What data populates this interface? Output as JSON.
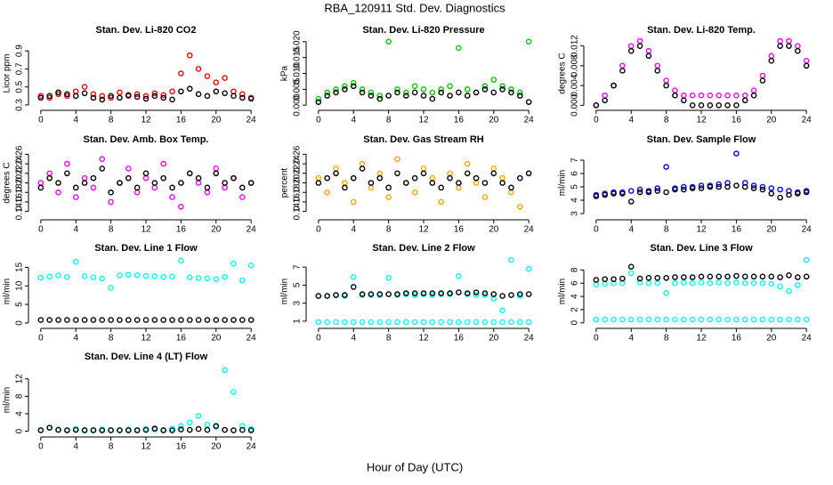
{
  "title": "RBA_120911  Std. Dev. Diagnostics",
  "xlabel": "Hour of Day (UTC)",
  "chart_data": [
    {
      "type": "scatter",
      "title": "Stan. Dev. Li-820 CO2",
      "ylabel": "Licor ppm",
      "x": [
        0,
        1,
        2,
        3,
        4,
        5,
        6,
        7,
        8,
        9,
        10,
        11,
        12,
        13,
        14,
        15,
        16,
        17,
        18,
        19,
        20,
        21,
        22,
        23,
        24
      ],
      "xlim": [
        -1,
        25
      ],
      "xticks": [
        0,
        4,
        8,
        12,
        16,
        20,
        24
      ],
      "ylim": [
        0.28,
        1.02
      ],
      "yticks": [
        0.3,
        0.5,
        0.7,
        0.9
      ],
      "series": [
        {
          "color": "#ff0000",
          "values": [
            0.4,
            0.38,
            0.42,
            0.4,
            0.45,
            0.5,
            0.42,
            0.4,
            0.38,
            0.44,
            0.4,
            0.42,
            0.4,
            0.43,
            0.41,
            0.45,
            0.65,
            0.85,
            0.7,
            0.62,
            0.55,
            0.6,
            0.45,
            0.42,
            0.38
          ]
        },
        {
          "color": "#000000",
          "values": [
            0.38,
            0.4,
            0.44,
            0.42,
            0.4,
            0.43,
            0.38,
            0.36,
            0.4,
            0.38,
            0.41,
            0.39,
            0.37,
            0.4,
            0.38,
            0.36,
            0.45,
            0.48,
            0.42,
            0.4,
            0.45,
            0.43,
            0.4,
            0.38,
            0.37
          ]
        }
      ]
    },
    {
      "type": "scatter",
      "title": "Stan. Dev. Li-820 Pressure",
      "ylabel": "kPa",
      "x": [
        0,
        1,
        2,
        3,
        4,
        5,
        6,
        7,
        8,
        9,
        10,
        11,
        12,
        13,
        14,
        15,
        16,
        17,
        18,
        19,
        20,
        21,
        22,
        23,
        24
      ],
      "xlim": [
        -1,
        25
      ],
      "xticks": [
        0,
        4,
        8,
        12,
        16,
        20,
        24
      ],
      "ylim": [
        -0.0005,
        0.0205
      ],
      "yticks": [
        {
          "value": 0,
          "label": "0.000"
        },
        {
          "value": 0.005,
          "label": "0.005"
        },
        {
          "value": 0.01,
          "label": "0.010"
        },
        {
          "value": 0.015,
          "label": "0.015"
        },
        {
          "value": 0.02,
          "label": "0.020"
        }
      ],
      "series": [
        {
          "color": "#00cc00",
          "values": [
            0.002,
            0.004,
            0.005,
            0.006,
            0.007,
            0.005,
            0.004,
            0.003,
            0.02,
            0.005,
            0.004,
            0.006,
            0.005,
            0.004,
            0.005,
            0.006,
            0.018,
            0.005,
            0.004,
            0.006,
            0.008,
            0.006,
            0.005,
            0.004,
            0.02
          ]
        },
        {
          "color": "#000000",
          "values": [
            0.001,
            0.003,
            0.004,
            0.005,
            0.006,
            0.004,
            0.003,
            0.002,
            0.003,
            0.004,
            0.003,
            0.004,
            0.003,
            0.002,
            0.004,
            0.003,
            0.004,
            0.003,
            0.004,
            0.005,
            0.004,
            0.005,
            0.004,
            0.003,
            0.001
          ]
        }
      ]
    },
    {
      "type": "scatter",
      "title": "Stan. Dev. Li-820 Temp.",
      "ylabel": "degrees C",
      "x": [
        0,
        1,
        2,
        3,
        4,
        5,
        6,
        7,
        8,
        9,
        10,
        11,
        12,
        13,
        14,
        15,
        16,
        17,
        18,
        19,
        20,
        21,
        22,
        23,
        24
      ],
      "xlim": [
        -1,
        25
      ],
      "xticks": [
        0,
        4,
        8,
        12,
        16,
        20,
        24
      ],
      "ylim": [
        -0.0003,
        0.0132
      ],
      "yticks": [
        {
          "value": 0,
          "label": "0.000"
        },
        {
          "value": 0.004,
          "label": "0.004"
        },
        {
          "value": 0.008,
          "label": "0.008"
        },
        {
          "value": 0.012,
          "label": "0.012"
        }
      ],
      "series": [
        {
          "color": "#ff00ff",
          "values": [
            0,
            0.002,
            0.004,
            0.008,
            0.012,
            0.013,
            0.011,
            0.008,
            0.005,
            0.003,
            0.002,
            0.002,
            0.002,
            0.002,
            0.002,
            0.002,
            0.002,
            0.002,
            0.003,
            0.006,
            0.01,
            0.013,
            0.013,
            0.012,
            0.009
          ]
        },
        {
          "color": "#000000",
          "values": [
            0,
            0.001,
            0.004,
            0.007,
            0.011,
            0.012,
            0.01,
            0.007,
            0.004,
            0.002,
            0.001,
            0,
            0,
            0,
            0,
            0,
            0,
            0.001,
            0.002,
            0.005,
            0.009,
            0.012,
            0.012,
            0.011,
            0.008
          ]
        }
      ]
    },
    {
      "type": "scatter",
      "title": "Stan. Dev. Amb. Box Temp.",
      "ylabel": "degrees C",
      "x": [
        0,
        1,
        2,
        3,
        4,
        5,
        6,
        7,
        8,
        9,
        10,
        11,
        12,
        13,
        14,
        15,
        16,
        17,
        18,
        19,
        20,
        21,
        22,
        23,
        24
      ],
      "xlim": [
        -1,
        25
      ],
      "xticks": [
        0,
        4,
        8,
        12,
        16,
        20,
        24
      ],
      "ylim": [
        0.13,
        0.27
      ],
      "yticks": [
        0.14,
        0.16,
        0.18,
        {
          "value": 0.2,
          "label": "0.20"
        },
        0.22,
        0.24,
        0.26
      ],
      "series": [
        {
          "color": "#ff00ff",
          "values": [
            0.2,
            0.22,
            0.18,
            0.24,
            0.17,
            0.21,
            0.19,
            0.25,
            0.16,
            0.2,
            0.23,
            0.18,
            0.21,
            0.19,
            0.24,
            0.17,
            0.15,
            0.22,
            0.2,
            0.18,
            0.23,
            0.19,
            0.21,
            0.17,
            0.2
          ]
        },
        {
          "color": "#000000",
          "values": [
            0.19,
            0.21,
            0.2,
            0.22,
            0.19,
            0.2,
            0.21,
            0.23,
            0.18,
            0.2,
            0.21,
            0.19,
            0.22,
            0.2,
            0.21,
            0.19,
            0.2,
            0.22,
            0.21,
            0.19,
            0.22,
            0.2,
            0.21,
            0.19,
            0.2
          ]
        }
      ]
    },
    {
      "type": "scatter",
      "title": "Stan. Dev. Gas Stream RH",
      "ylabel": "percent",
      "x": [
        0,
        1,
        2,
        3,
        4,
        5,
        6,
        7,
        8,
        9,
        10,
        11,
        12,
        13,
        14,
        15,
        16,
        17,
        18,
        19,
        20,
        21,
        22,
        23,
        24
      ],
      "xlim": [
        -1,
        25
      ],
      "xticks": [
        0,
        4,
        8,
        12,
        16,
        20,
        24
      ],
      "ylim": [
        0.13,
        0.27
      ],
      "yticks": [
        0.14,
        0.16,
        0.18,
        {
          "value": 0.2,
          "label": "0.20"
        },
        0.22,
        0.24,
        0.26
      ],
      "series": [
        {
          "color": "#ffa500",
          "values": [
            0.21,
            0.18,
            0.23,
            0.2,
            0.16,
            0.24,
            0.19,
            0.22,
            0.17,
            0.25,
            0.2,
            0.18,
            0.23,
            0.21,
            0.16,
            0.22,
            0.19,
            0.24,
            0.2,
            0.17,
            0.23,
            0.21,
            0.18,
            0.15,
            0.22
          ]
        },
        {
          "color": "#000000",
          "values": [
            0.2,
            0.21,
            0.22,
            0.19,
            0.21,
            0.23,
            0.2,
            0.21,
            0.19,
            0.22,
            0.2,
            0.21,
            0.22,
            0.2,
            0.19,
            0.21,
            0.2,
            0.22,
            0.21,
            0.2,
            0.22,
            0.2,
            0.19,
            0.21,
            0.22
          ]
        }
      ]
    },
    {
      "type": "scatter",
      "title": "Stan. Dev. Sample Flow",
      "ylabel": "ml/min",
      "x": [
        0,
        1,
        2,
        3,
        4,
        5,
        6,
        7,
        8,
        9,
        10,
        11,
        12,
        13,
        14,
        15,
        16,
        17,
        18,
        19,
        20,
        21,
        22,
        23,
        24
      ],
      "xlim": [
        -1,
        25
      ],
      "xticks": [
        0,
        4,
        8,
        12,
        16,
        20,
        24
      ],
      "ylim": [
        2.8,
        7.8
      ],
      "yticks": [
        3,
        4,
        5,
        6,
        7
      ],
      "series": [
        {
          "color": "#0000ff",
          "values": [
            4.4,
            4.5,
            4.6,
            4.6,
            4.7,
            4.8,
            4.7,
            4.9,
            6.5,
            4.9,
            5.0,
            5.0,
            5.1,
            5.1,
            5.2,
            5.3,
            7.5,
            5.3,
            5.1,
            5.0,
            4.9,
            4.8,
            4.7,
            4.6,
            4.7
          ]
        },
        {
          "color": "#000000",
          "values": [
            4.3,
            4.4,
            4.5,
            4.5,
            3.9,
            4.6,
            4.6,
            4.7,
            4.6,
            4.8,
            4.8,
            4.9,
            4.9,
            5.0,
            5.0,
            5.0,
            5.1,
            5.0,
            4.9,
            4.8,
            4.5,
            4.2,
            4.4,
            4.5,
            4.6
          ]
        }
      ]
    },
    {
      "type": "scatter",
      "title": "Stan. Dev. Line 1 Flow",
      "ylabel": "ml/min",
      "x": [
        0,
        1,
        2,
        3,
        4,
        5,
        6,
        7,
        8,
        9,
        10,
        11,
        12,
        13,
        14,
        15,
        16,
        17,
        18,
        19,
        20,
        21,
        22,
        23,
        24
      ],
      "xlim": [
        -1,
        25
      ],
      "xticks": [
        0,
        4,
        8,
        12,
        16,
        20,
        24
      ],
      "ylim": [
        -0.5,
        17.5
      ],
      "yticks": [
        0,
        5,
        10,
        15
      ],
      "series": [
        {
          "color": "#00ffff",
          "values": [
            12.2,
            12.5,
            12.8,
            12.4,
            16.5,
            12.6,
            12.3,
            12.0,
            9.5,
            12.8,
            13.0,
            12.9,
            12.7,
            12.6,
            12.4,
            12.5,
            16.8,
            12.3,
            12.1,
            12.0,
            11.8,
            12.4,
            16.0,
            11.5,
            15.5
          ]
        },
        {
          "color": "#000000",
          "values": [
            0.8,
            0.8,
            0.8,
            0.8,
            0.8,
            0.8,
            0.8,
            0.8,
            0.8,
            0.8,
            0.8,
            0.8,
            0.8,
            0.8,
            0.8,
            0.8,
            0.8,
            0.8,
            0.8,
            0.8,
            0.8,
            0.8,
            0.8,
            0.8,
            0.8
          ]
        }
      ]
    },
    {
      "type": "scatter",
      "title": "Stan. Dev. Line 2 Flow",
      "ylabel": "ml/min",
      "x": [
        0,
        1,
        2,
        3,
        4,
        5,
        6,
        7,
        8,
        9,
        10,
        11,
        12,
        13,
        14,
        15,
        16,
        17,
        18,
        19,
        20,
        21,
        22,
        23,
        24
      ],
      "xlim": [
        -1,
        25
      ],
      "xticks": [
        0,
        4,
        8,
        12,
        16,
        20,
        24
      ],
      "ylim": [
        0.6,
        8
      ],
      "yticks": [
        1,
        3,
        5,
        7
      ],
      "series": [
        {
          "color": "#00ffff",
          "values": [
            3.8,
            3.8,
            3.9,
            3.8,
            5.9,
            3.9,
            3.9,
            3.9,
            5.8,
            3.9,
            4.0,
            3.9,
            4.0,
            3.9,
            4.0,
            4.0,
            6.0,
            4.0,
            3.9,
            3.9,
            3.5,
            2.2,
            7.8,
            3.8,
            6.8
          ]
        },
        {
          "color": "#00ffff",
          "values": [
            0.9,
            0.9,
            0.9,
            0.9,
            0.9,
            0.9,
            0.9,
            0.9,
            0.9,
            0.9,
            0.9,
            0.9,
            0.9,
            0.9,
            0.9,
            0.9,
            0.9,
            0.9,
            0.9,
            0.9,
            0.9,
            0.9,
            0.9,
            0.9,
            0.9
          ]
        },
        {
          "color": "#000000",
          "values": [
            3.8,
            3.8,
            3.9,
            3.9,
            4.8,
            4.0,
            4.0,
            4.0,
            4.0,
            4.0,
            4.1,
            4.1,
            4.1,
            4.1,
            4.1,
            4.1,
            4.2,
            4.1,
            4.2,
            4.1,
            4.0,
            3.8,
            3.9,
            4.0,
            4.0
          ]
        }
      ]
    },
    {
      "type": "scatter",
      "title": "Stan. Dev. Line 3 Flow",
      "ylabel": "ml/min",
      "x": [
        0,
        1,
        2,
        3,
        4,
        5,
        6,
        7,
        8,
        9,
        10,
        11,
        12,
        13,
        14,
        15,
        16,
        17,
        18,
        19,
        20,
        21,
        22,
        23,
        24
      ],
      "xlim": [
        -1,
        25
      ],
      "xticks": [
        0,
        4,
        8,
        12,
        16,
        20,
        24
      ],
      "ylim": [
        -0.3,
        9.8
      ],
      "yticks": [
        0,
        2,
        4,
        6,
        8
      ],
      "series": [
        {
          "color": "#00ffff",
          "values": [
            5.8,
            5.9,
            6.0,
            6.0,
            7.5,
            6.1,
            6.0,
            6.0,
            4.5,
            6.0,
            6.1,
            6.0,
            6.1,
            6.0,
            6.1,
            6.0,
            6.1,
            6.0,
            6.0,
            6.0,
            5.9,
            5.5,
            4.8,
            5.7,
            9.5
          ]
        },
        {
          "color": "#00ffff",
          "values": [
            0.5,
            0.5,
            0.5,
            0.5,
            0.5,
            0.5,
            0.5,
            0.5,
            0.5,
            0.5,
            0.5,
            0.5,
            0.5,
            0.5,
            0.5,
            0.5,
            0.5,
            0.5,
            0.5,
            0.5,
            0.5,
            0.5,
            0.5,
            0.5,
            0.5
          ]
        },
        {
          "color": "#000000",
          "values": [
            6.5,
            6.6,
            6.6,
            6.7,
            8.5,
            6.7,
            6.8,
            6.8,
            6.8,
            6.9,
            6.9,
            6.9,
            7.0,
            7.0,
            7.0,
            7.0,
            7.1,
            7.0,
            7.0,
            7.0,
            7.0,
            6.9,
            7.2,
            6.9,
            7.0
          ]
        }
      ]
    },
    {
      "type": "scatter",
      "title": "Stan. Dev. Line 4 (LT) Flow",
      "ylabel": "ml/min",
      "x": [
        0,
        1,
        2,
        3,
        4,
        5,
        6,
        7,
        8,
        9,
        10,
        11,
        12,
        13,
        14,
        15,
        16,
        17,
        18,
        19,
        20,
        21,
        22,
        23,
        24
      ],
      "xlim": [
        -1,
        25
      ],
      "xticks": [
        0,
        4,
        8,
        12,
        16,
        20,
        24
      ],
      "ylim": [
        -0.5,
        14.8
      ],
      "yticks": [
        0,
        4,
        8,
        12
      ],
      "series": [
        {
          "color": "#00ffff",
          "values": [
            0.3,
            0.8,
            0.4,
            0.3,
            0.5,
            0.3,
            0.3,
            0.4,
            0.3,
            0.3,
            0.4,
            0.3,
            0.5,
            0.4,
            0.3,
            0.6,
            1.2,
            2.0,
            3.5,
            1.5,
            1.0,
            14.0,
            9.0,
            1.2,
            0.5
          ]
        },
        {
          "color": "#000000",
          "values": [
            0.2,
            0.8,
            0.3,
            0.2,
            0.3,
            0.2,
            0.2,
            0.2,
            0.2,
            0.2,
            0.2,
            0.2,
            0.3,
            0.6,
            0.2,
            0.2,
            0.4,
            0.3,
            0.5,
            0.3,
            1.2,
            0.3,
            0.2,
            0.3,
            0.2
          ]
        }
      ]
    }
  ]
}
